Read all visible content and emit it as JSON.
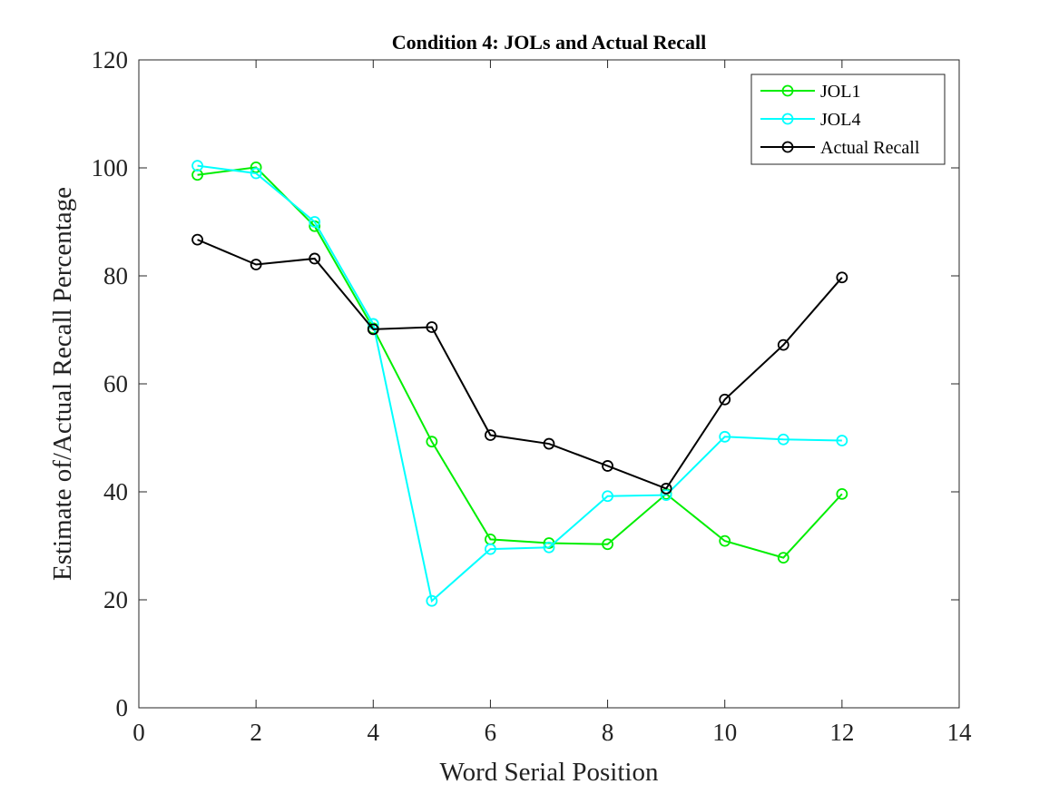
{
  "chart_data": {
    "type": "line",
    "title": "Condition 4: JOLs and Actual Recall",
    "xlabel": "Word Serial Position",
    "ylabel": "Estimate of/Actual Recall Percentage",
    "xlim": [
      0,
      14
    ],
    "ylim": [
      0,
      120
    ],
    "xticks": [
      0,
      2,
      4,
      6,
      8,
      10,
      12,
      14
    ],
    "yticks": [
      0,
      20,
      40,
      60,
      80,
      100,
      120
    ],
    "grid": false,
    "legend_position": "top-right",
    "x": [
      1,
      2,
      3,
      4,
      5,
      6,
      7,
      8,
      9,
      10,
      11,
      12
    ],
    "series": [
      {
        "name": "JOL1",
        "color": "#00ee00",
        "values": [
          98.7,
          100.1,
          89.2,
          70.3,
          49.3,
          31.2,
          30.5,
          30.3,
          39.6,
          30.9,
          27.8,
          39.6
        ]
      },
      {
        "name": "JOL4",
        "color": "#00ffff",
        "values": [
          100.4,
          99.0,
          90.0,
          71.1,
          19.8,
          29.4,
          29.7,
          39.2,
          39.4,
          50.2,
          49.7,
          49.5
        ]
      },
      {
        "name": "Actual Recall",
        "color": "#000000",
        "values": [
          86.7,
          82.1,
          83.2,
          70.1,
          70.5,
          50.5,
          48.9,
          44.8,
          40.6,
          57.1,
          67.2,
          79.7
        ]
      }
    ]
  }
}
